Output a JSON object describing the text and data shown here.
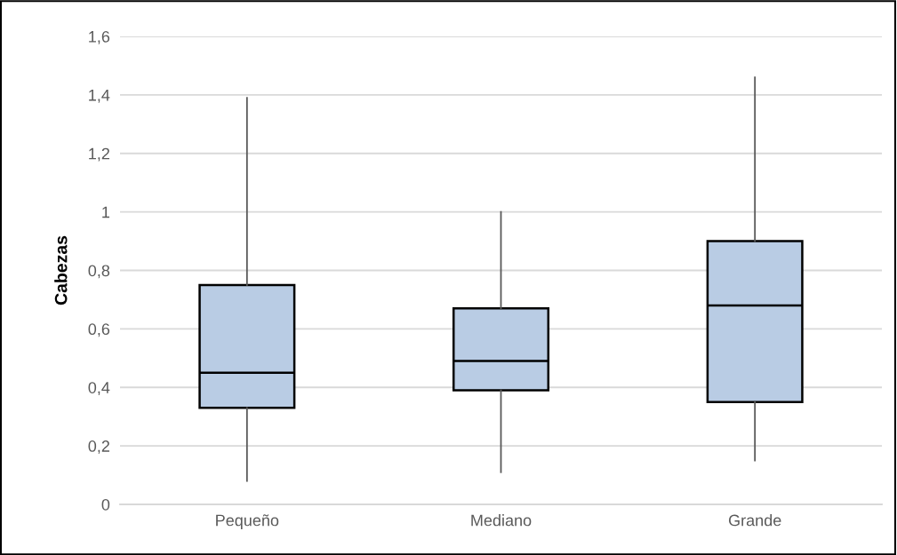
{
  "chart_data": {
    "type": "box",
    "ylabel": "Cabezas",
    "categories": [
      "Pequeño",
      "Mediano",
      "Grande"
    ],
    "series": [
      {
        "color": "#b9cce4",
        "boxes": [
          {
            "low": 0.08,
            "q1": 0.33,
            "median": 0.45,
            "q3": 0.75,
            "high": 1.39
          },
          {
            "low": 0.11,
            "q1": 0.39,
            "median": 0.49,
            "q3": 0.67,
            "high": 1.0
          },
          {
            "low": 0.15,
            "q1": 0.35,
            "median": 0.68,
            "q3": 0.9,
            "high": 1.46
          }
        ]
      }
    ],
    "ylim": [
      0,
      1.6
    ],
    "yticks": [
      0,
      {
        "value": 0.2,
        "label": "0,2"
      },
      {
        "value": 0.4,
        "label": "0,4"
      },
      {
        "value": 0.6,
        "label": "0,6"
      },
      {
        "value": 0.8,
        "label": "0,8"
      },
      1,
      {
        "value": 1.2,
        "label": "1,2"
      },
      {
        "value": 1.4,
        "label": "1,4"
      },
      {
        "value": 1.6,
        "label": "1,6"
      }
    ],
    "grid": "y"
  }
}
